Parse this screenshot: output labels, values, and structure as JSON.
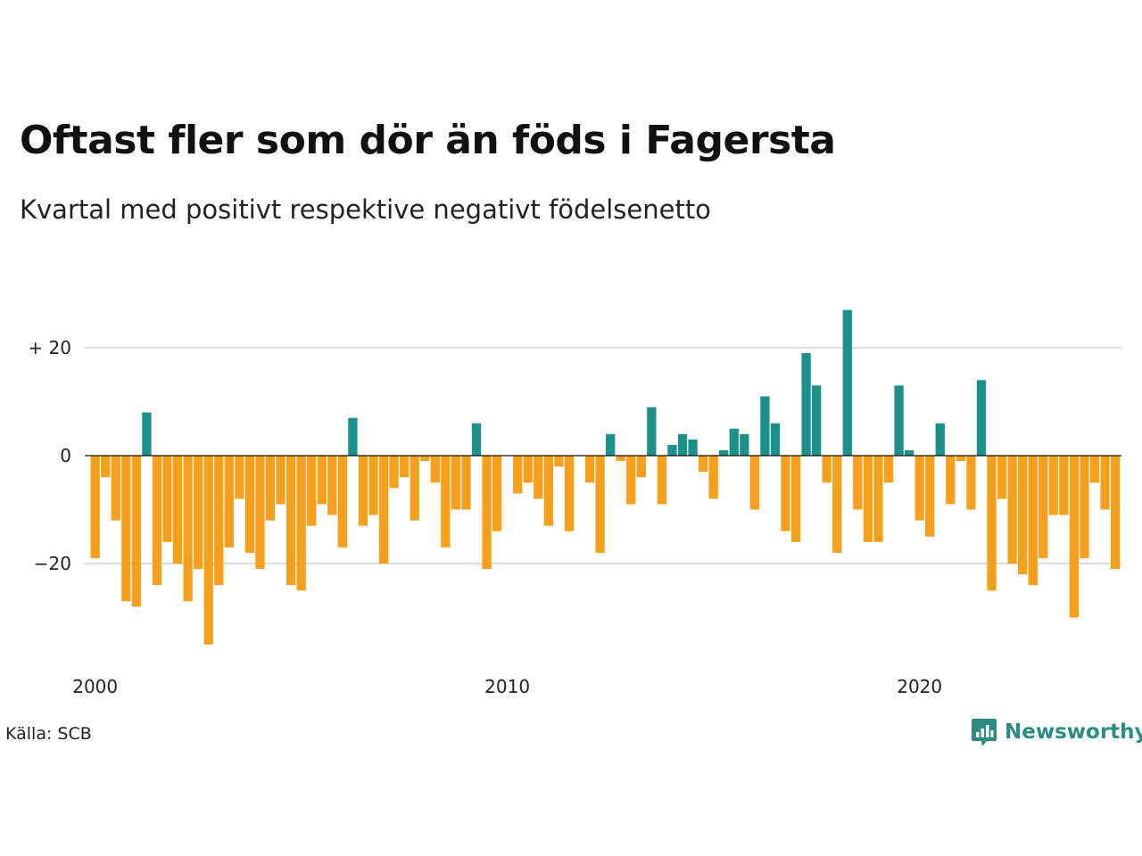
{
  "title": "Oftast fler som dör än föds i Fagersta",
  "subtitle": "Kvartal med positivt respektive negativt födelsenetto",
  "source": "Källa: SCB",
  "brand": "Newsworthy",
  "colors": {
    "positive": "#1b9189",
    "negative": "#f59f1c",
    "grid": "#dddddd",
    "zero": "#111111",
    "brand": "#2a8c82"
  },
  "icons": {
    "brand_logo": "newsworthy-logo-icon"
  },
  "chart_data": {
    "type": "bar",
    "x_start": "2000 Q1",
    "frequency": "quarter",
    "xticks": [
      {
        "x": "2000",
        "label": "2000"
      },
      {
        "x": "2010",
        "label": "2010"
      },
      {
        "x": "2020",
        "label": "2020"
      }
    ],
    "yticks": [
      {
        "value": 20,
        "label": "+ 20"
      },
      {
        "value": 0,
        "label": "0"
      },
      {
        "value": -20,
        "label": "−20"
      }
    ],
    "ylim": [
      -37,
      29
    ],
    "grid": true,
    "values": [
      -19,
      -4,
      -12,
      -27,
      -28,
      8,
      -24,
      -16,
      -20,
      -27,
      -21,
      -35,
      -24,
      -17,
      -8,
      -18,
      -21,
      -12,
      -9,
      -24,
      -25,
      -13,
      -9,
      -11,
      -17,
      7,
      -13,
      -11,
      -20,
      -6,
      -4,
      -12,
      -1,
      -5,
      -17,
      -10,
      -10,
      6,
      -21,
      -14,
      0,
      -7,
      -5,
      -8,
      -13,
      -2,
      -14,
      0,
      -5,
      -18,
      4,
      -1,
      -9,
      -4,
      9,
      -9,
      2,
      4,
      3,
      -3,
      -8,
      1,
      5,
      4,
      -10,
      11,
      6,
      -14,
      -16,
      19,
      13,
      -5,
      -18,
      27,
      -10,
      -16,
      -16,
      -5,
      13,
      1,
      -12,
      -15,
      6,
      -9,
      -1,
      -10,
      14,
      -25,
      -8,
      -20,
      -22,
      -24,
      -19,
      -11,
      -11,
      -30,
      -19,
      -5,
      -10,
      -21
    ]
  }
}
